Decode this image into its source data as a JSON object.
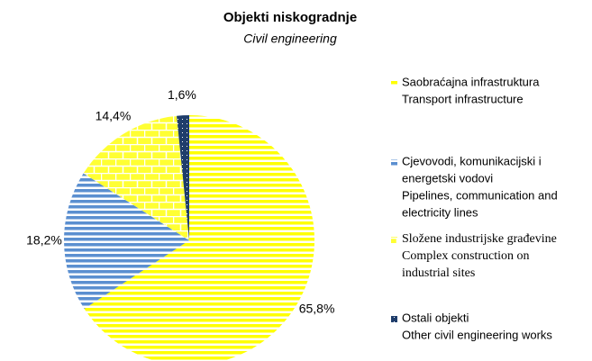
{
  "chart_data": {
    "type": "pie",
    "title": "Objekti niskogradnje",
    "subtitle": "Civil engineering",
    "categories": [
      [
        "Saobraćajna infrastruktura",
        "Transport infrastructure"
      ],
      [
        "Cjevovodi, komunikacijski i",
        "energetski vodovi",
        "Pipelines, communication and",
        "electricity lines"
      ],
      [
        "Složene industrijske građevine",
        "Complex construction on",
        "industrial sites"
      ],
      [
        "Ostali objekti",
        "Other civil engineering works"
      ]
    ],
    "values": [
      65.8,
      18.2,
      14.4,
      1.6
    ],
    "value_labels": [
      "65,8%",
      "18,2%",
      "14,4%",
      "1,6%"
    ],
    "colors": [
      "#ffff00",
      "#5b8fd0",
      "#ffff33",
      "#1f3d6b"
    ],
    "patterns": [
      "stripes",
      "stripes",
      "brick",
      "dots"
    ]
  }
}
